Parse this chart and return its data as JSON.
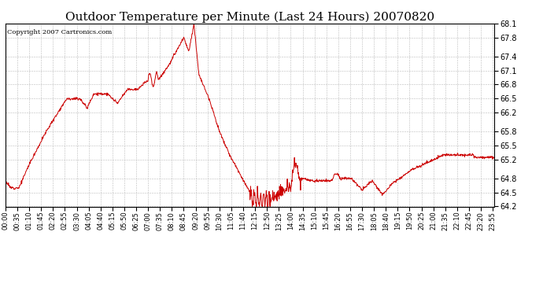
{
  "title": "Outdoor Temperature per Minute (Last 24 Hours) 20070820",
  "copyright_text": "Copyright 2007 Cartronics.com",
  "line_color": "#cc0000",
  "background_color": "#ffffff",
  "grid_color": "#bbbbbb",
  "y_min": 64.2,
  "y_max": 68.1,
  "y_ticks": [
    64.2,
    64.5,
    64.8,
    65.2,
    65.5,
    65.8,
    66.2,
    66.5,
    66.8,
    67.1,
    67.4,
    67.8,
    68.1
  ],
  "x_tick_labels": [
    "00:00",
    "00:35",
    "01:10",
    "01:45",
    "02:20",
    "02:55",
    "03:30",
    "04:05",
    "04:40",
    "05:15",
    "05:50",
    "06:25",
    "07:00",
    "07:35",
    "08:10",
    "08:45",
    "09:20",
    "09:55",
    "10:30",
    "11:05",
    "11:40",
    "12:15",
    "12:50",
    "13:25",
    "14:00",
    "14:35",
    "15:10",
    "15:45",
    "16:20",
    "16:55",
    "17:30",
    "18:05",
    "18:40",
    "19:15",
    "19:50",
    "20:25",
    "21:00",
    "21:35",
    "22:10",
    "22:45",
    "23:20",
    "23:55"
  ],
  "title_fontsize": 11,
  "copyright_fontsize": 6,
  "tick_fontsize": 6,
  "ytick_fontsize": 7
}
